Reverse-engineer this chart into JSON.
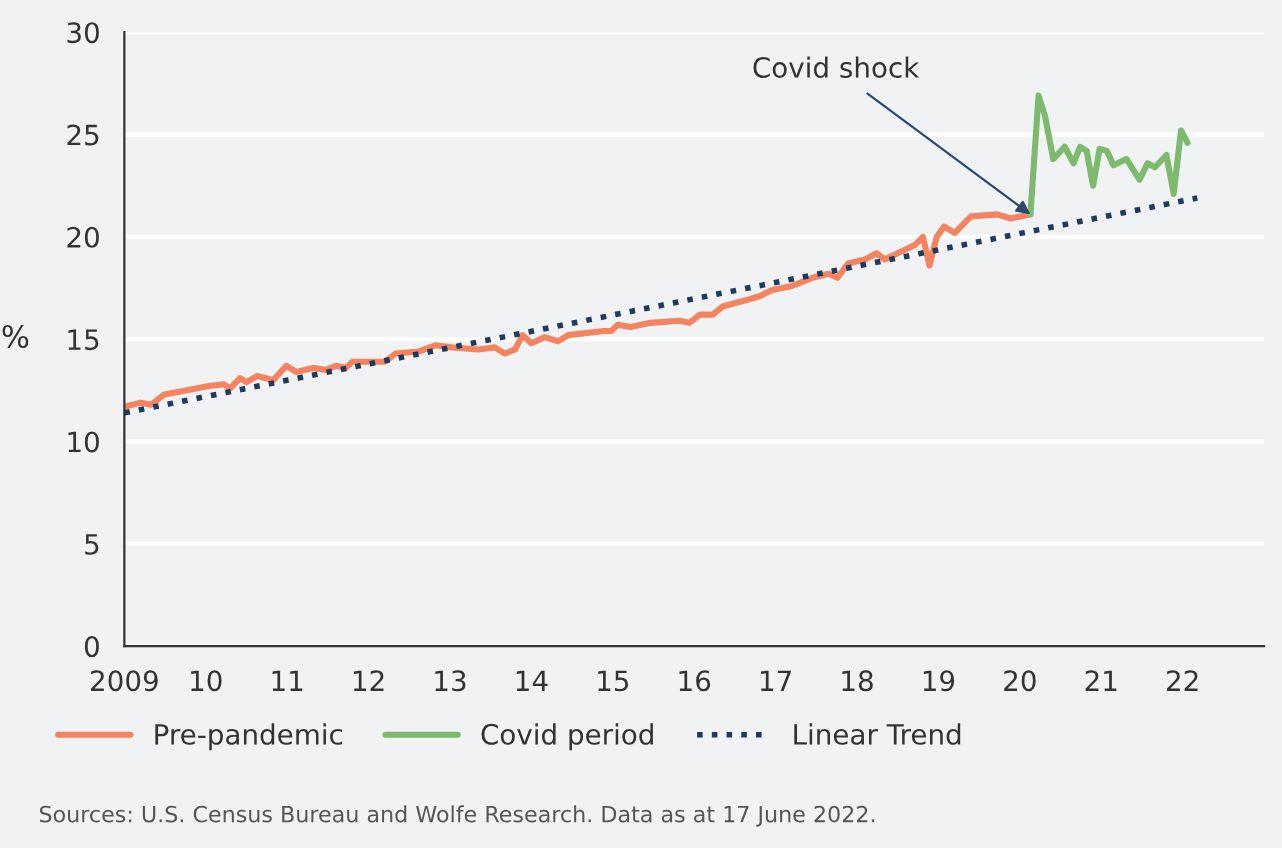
{
  "chart_data": {
    "type": "line",
    "ylabel": "%",
    "xlim": [
      2009,
      2023
    ],
    "ylim": [
      0,
      30
    ],
    "xticks": [
      2009,
      {
        "value": 2010,
        "label": "10"
      },
      {
        "value": 2011,
        "label": "11"
      },
      {
        "value": 2012,
        "label": "12"
      },
      {
        "value": 2013,
        "label": "13"
      },
      {
        "value": 2014,
        "label": "14"
      },
      {
        "value": 2015,
        "label": "15"
      },
      {
        "value": 2016,
        "label": "16"
      },
      {
        "value": 2017,
        "label": "17"
      },
      {
        "value": 2018,
        "label": "18"
      },
      {
        "value": 2019,
        "label": "19"
      },
      {
        "value": 2020,
        "label": "20"
      },
      {
        "value": 2021,
        "label": "21"
      },
      {
        "value": 2022,
        "label": "22"
      }
    ],
    "yticks": [
      0,
      5,
      10,
      15,
      20,
      25,
      30
    ],
    "grid": "y",
    "legend": "bottom",
    "marker": "none",
    "series": [
      {
        "name": "Pre-pandemic",
        "color": "#f4845f",
        "line_style": "solid",
        "x": [
          2009.0,
          2009.2,
          2009.33,
          2009.49,
          2009.77,
          2010.02,
          2010.22,
          2010.3,
          2010.42,
          2010.5,
          2010.63,
          2010.83,
          2010.99,
          2011.11,
          2011.32,
          2011.48,
          2011.6,
          2011.72,
          2011.8,
          2011.97,
          2012.21,
          2012.33,
          2012.62,
          2012.82,
          2013.02,
          2013.35,
          2013.55,
          2013.67,
          2013.8,
          2013.89,
          2014.0,
          2014.16,
          2014.33,
          2014.45,
          2014.89,
          2014.98,
          2015.06,
          2015.22,
          2015.46,
          2015.82,
          2015.94,
          2016.07,
          2016.23,
          2016.35,
          2016.63,
          2016.8,
          2016.96,
          2017.2,
          2017.45,
          2017.65,
          2017.76,
          2017.89,
          2018.1,
          2018.24,
          2018.34,
          2018.5,
          2018.71,
          2018.81,
          2018.89,
          2018.98,
          2019.07,
          2019.2,
          2019.4,
          2019.72,
          2019.89,
          2020.01,
          2020.13
        ],
        "values": [
          11.7,
          11.9,
          11.8,
          12.3,
          12.5,
          12.7,
          12.8,
          12.6,
          13.1,
          12.9,
          13.2,
          13.0,
          13.7,
          13.4,
          13.6,
          13.5,
          13.7,
          13.6,
          13.9,
          13.9,
          13.9,
          14.3,
          14.4,
          14.7,
          14.6,
          14.5,
          14.6,
          14.3,
          14.5,
          15.2,
          14.8,
          15.1,
          14.9,
          15.2,
          15.4,
          15.4,
          15.7,
          15.6,
          15.8,
          15.9,
          15.8,
          16.2,
          16.2,
          16.6,
          16.9,
          17.1,
          17.4,
          17.6,
          18.0,
          18.2,
          18.0,
          18.7,
          18.9,
          19.2,
          18.9,
          19.2,
          19.6,
          20.0,
          18.6,
          20.0,
          20.5,
          20.2,
          21.0,
          21.1,
          20.9,
          21.0,
          21.1
        ]
      },
      {
        "name": "Covid period",
        "color": "#7dba6e",
        "line_style": "solid",
        "x": [
          2020.13,
          2020.23,
          2020.31,
          2020.41,
          2020.55,
          2020.66,
          2020.74,
          2020.82,
          2020.9,
          2020.98,
          2021.07,
          2021.15,
          2021.31,
          2021.47,
          2021.57,
          2021.66,
          2021.8,
          2021.89,
          2021.98,
          2022.06
        ],
        "values": [
          21.1,
          26.9,
          25.9,
          23.8,
          24.4,
          23.6,
          24.4,
          24.2,
          22.5,
          24.3,
          24.2,
          23.5,
          23.8,
          22.8,
          23.6,
          23.4,
          24.0,
          22.1,
          25.2,
          24.6
        ]
      },
      {
        "name": "Linear Trend",
        "color": "#1f3a5f",
        "line_style": "dotted",
        "x": [
          2009.0,
          2022.18
        ],
        "values": [
          11.4,
          21.9
        ]
      }
    ],
    "annotations": [
      {
        "text": "Covid shock",
        "x": 2020.13,
        "y": 21.1
      },
      "Sources: U.S. Census Bureau and Wolfe Research. Data as at 17 June 2022."
    ]
  }
}
